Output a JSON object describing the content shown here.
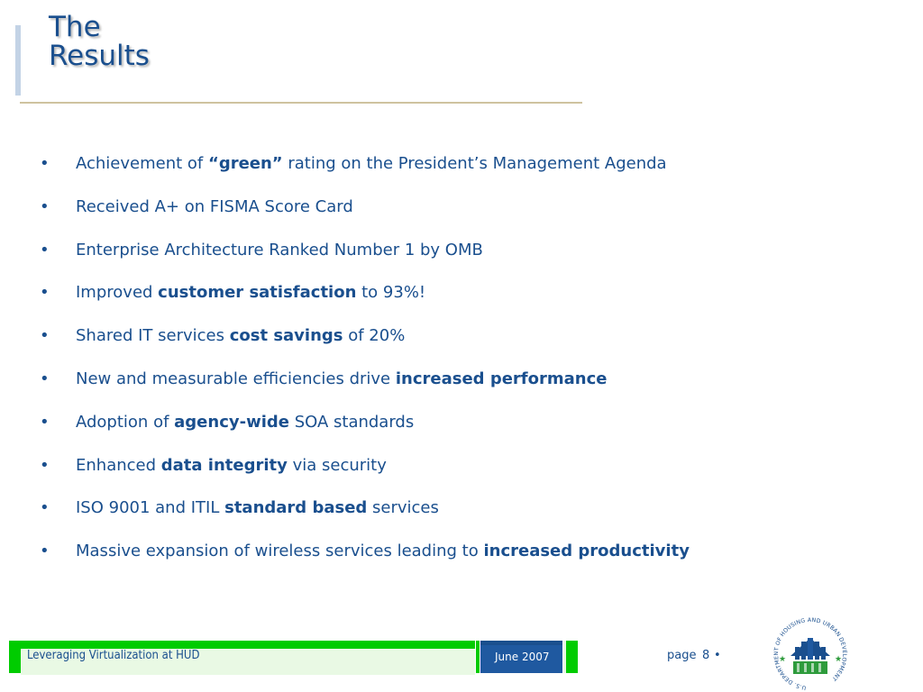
{
  "title": {
    "line1": "The",
    "line2": "Results"
  },
  "bullets": [
    {
      "marker": "•",
      "parts": [
        {
          "text": "Achievement of ",
          "bold": false
        },
        {
          "text": "“green”",
          "bold": true
        },
        {
          "text": " rating on the President’s Management Agenda",
          "bold": false
        }
      ]
    },
    {
      "marker": "•",
      "parts": [
        {
          "text": "Received A+ on FISMA Score Card",
          "bold": false
        }
      ]
    },
    {
      "marker": "•",
      "parts": [
        {
          "text": "Enterprise Architecture Ranked Number 1 by OMB",
          "bold": false
        }
      ]
    },
    {
      "marker": "•",
      "parts": [
        {
          "text": "Improved ",
          "bold": false
        },
        {
          "text": "customer satisfaction",
          "bold": true
        },
        {
          "text": " to 93%!",
          "bold": false
        }
      ]
    },
    {
      "marker": "•",
      "parts": [
        {
          "text": "Shared IT services ",
          "bold": false
        },
        {
          "text": "cost savings",
          "bold": true
        },
        {
          "text": " of 20%",
          "bold": false
        }
      ]
    },
    {
      "marker": "•",
      "parts": [
        {
          "text": "New and measurable efficiencies drive ",
          "bold": false
        },
        {
          "text": "increased performance",
          "bold": true
        }
      ]
    },
    {
      "marker": "•",
      "parts": [
        {
          "text": "Adoption of ",
          "bold": false
        },
        {
          "text": "agency-wide",
          "bold": true
        },
        {
          "text": " SOA standards",
          "bold": false
        }
      ]
    },
    {
      "marker": "•",
      "parts": [
        {
          "text": "Enhanced ",
          "bold": false
        },
        {
          "text": "data integrity",
          "bold": true
        },
        {
          "text": " via security",
          "bold": false
        }
      ]
    },
    {
      "marker": "•",
      "parts": [
        {
          "text": "ISO 9001 and ITIL ",
          "bold": false
        },
        {
          "text": "standard based",
          "bold": true
        },
        {
          "text": " services",
          "bold": false
        }
      ]
    },
    {
      "marker": "•",
      "parts": [
        {
          "text": "Massive expansion of wireless services leading to ",
          "bold": false
        },
        {
          "text": "increased productivity",
          "bold": true
        }
      ]
    }
  ],
  "footer": {
    "title": "Leveraging Virtualization at HUD",
    "date": "June 2007",
    "page_label": "page",
    "page_number": "8",
    "page_dot": "•"
  },
  "seal": {
    "ring_text": "U.S. DEPARTMENT OF HOUSING AND URBAN DEVELOPMENT"
  },
  "colors": {
    "text_blue": "#1a4f8e",
    "footer_green": "#00cc00",
    "rule_tan": "#cfc39f"
  },
  "icons": {
    "seal": "hud-seal-icon"
  }
}
